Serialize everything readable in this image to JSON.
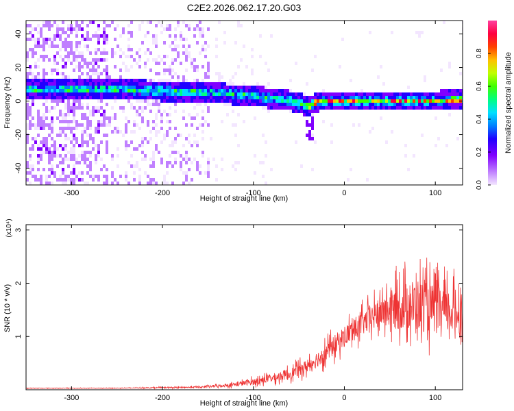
{
  "title": "C2E2.2026.062.17.20.G03",
  "colors": {
    "signal": "#ee3333",
    "axis": "#000000",
    "colormap": [
      "#ffffff",
      "#f2e6ff",
      "#cc88ff",
      "#8800ff",
      "#3300ff",
      "#0066ff",
      "#00ccff",
      "#00ff99",
      "#33ff00",
      "#ccff00",
      "#ffcc00",
      "#ff6600",
      "#ff0000",
      "#ff0066",
      "#ff33aa"
    ]
  },
  "chart_data": [
    {
      "type": "heatmap",
      "xlabel": "Height of straight line (km)",
      "ylabel": "Frequency (Hz)",
      "xlim": [
        -350,
        130
      ],
      "ylim": [
        -50,
        48
      ],
      "xticks": [
        -300,
        -200,
        -100,
        0,
        100
      ],
      "yticks": [
        -40,
        -20,
        0,
        20,
        40
      ],
      "colorbar": {
        "label": "Normalized spectral amplitude",
        "range": [
          0,
          1
        ],
        "ticks": [
          0.0,
          0.2,
          0.4,
          0.6,
          0.8
        ]
      },
      "ridge": {
        "heights": [
          -350,
          -260,
          -200,
          -150,
          -100,
          -60,
          -40,
          -30,
          0,
          50,
          100,
          130
        ],
        "center_freq": [
          8,
          8,
          7,
          6,
          4,
          1,
          -2,
          1,
          1,
          1,
          1,
          2
        ]
      }
    },
    {
      "type": "line",
      "title_exponent": "(x10⁴)",
      "xlabel": "Height of straight line (km)",
      "ylabel": "SNR (10 * v/v)",
      "xlim": [
        -350,
        130
      ],
      "ylim": [
        0,
        3.1
      ],
      "xticks": [
        -300,
        -200,
        -100,
        0,
        100
      ],
      "yticks": [
        1,
        2,
        3
      ],
      "series": [
        {
          "name": "SNR",
          "x": [
            -350,
            -300,
            -250,
            -200,
            -160,
            -140,
            -120,
            -100,
            -80,
            -60,
            -40,
            -20,
            0,
            20,
            40,
            60,
            80,
            100,
            130
          ],
          "y": [
            0.03,
            0.03,
            0.03,
            0.04,
            0.05,
            0.07,
            0.1,
            0.15,
            0.22,
            0.3,
            0.45,
            0.7,
            1.0,
            1.25,
            1.45,
            1.55,
            1.6,
            1.5,
            1.45
          ],
          "spread": [
            0.01,
            0.01,
            0.01,
            0.02,
            0.03,
            0.05,
            0.08,
            0.12,
            0.15,
            0.2,
            0.25,
            0.35,
            0.4,
            0.45,
            0.55,
            0.85,
            1.0,
            0.9,
            0.8
          ]
        }
      ]
    }
  ]
}
